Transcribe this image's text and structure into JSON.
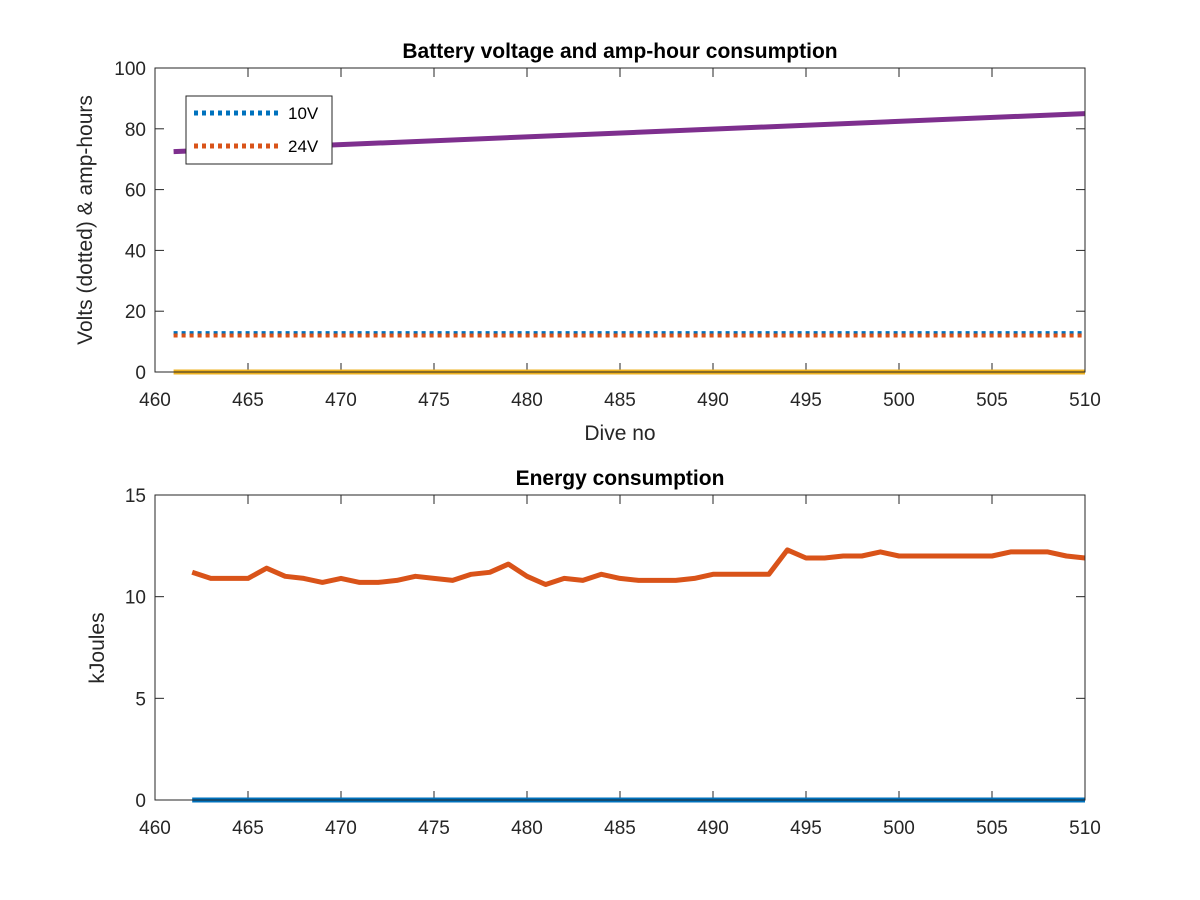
{
  "chart_data": [
    {
      "type": "line",
      "title": "Battery voltage and amp-hour consumption",
      "xlabel": "Dive no",
      "ylabel": "Volts (dotted) & amp-hours",
      "xlim": [
        460,
        510
      ],
      "ylim": [
        0,
        100
      ],
      "xticks": [
        460,
        465,
        470,
        475,
        480,
        485,
        490,
        495,
        500,
        505,
        510
      ],
      "yticks": [
        0,
        20,
        40,
        60,
        80,
        100
      ],
      "grid": false,
      "legend_position": "top-left",
      "series": [
        {
          "name": "10V",
          "color": "#0072BD",
          "style": "dotted",
          "x": [
            461,
            510
          ],
          "y": [
            12.8,
            12.8
          ]
        },
        {
          "name": "24V",
          "color": "#D95319",
          "style": "dotted",
          "x": [
            461,
            510
          ],
          "y": [
            12.0,
            12.0
          ]
        },
        {
          "color": "#EDB120",
          "style": "solid",
          "x": [
            461,
            510
          ],
          "y": [
            0,
            0
          ]
        },
        {
          "color": "#7E2F8E",
          "style": "solid",
          "x": [
            461,
            510
          ],
          "y": [
            72.5,
            85.0
          ]
        }
      ]
    },
    {
      "type": "line",
      "title": "Energy consumption",
      "xlabel": "",
      "ylabel": "kJoules",
      "xlim": [
        460,
        510
      ],
      "ylim": [
        0,
        15
      ],
      "xticks": [
        460,
        465,
        470,
        475,
        480,
        485,
        490,
        495,
        500,
        505,
        510
      ],
      "yticks": [
        0,
        5,
        10,
        15
      ],
      "grid": false,
      "series": [
        {
          "color": "#0072BD",
          "style": "solid",
          "x": [
            462,
            510
          ],
          "y": [
            0,
            0
          ]
        },
        {
          "color": "#D95319",
          "style": "solid",
          "x": [
            462,
            463,
            464,
            465,
            466,
            467,
            468,
            469,
            470,
            471,
            472,
            473,
            474,
            475,
            476,
            477,
            478,
            479,
            480,
            481,
            482,
            483,
            484,
            485,
            486,
            487,
            488,
            489,
            490,
            491,
            492,
            493,
            494,
            495,
            496,
            497,
            498,
            499,
            500,
            501,
            502,
            503,
            504,
            505,
            506,
            507,
            508,
            509,
            510
          ],
          "y": [
            11.2,
            10.9,
            10.9,
            10.9,
            11.4,
            11.0,
            10.9,
            10.7,
            10.9,
            10.7,
            10.7,
            10.8,
            11.0,
            10.9,
            10.8,
            11.1,
            11.2,
            11.6,
            11.0,
            10.6,
            10.9,
            10.8,
            11.1,
            10.9,
            10.8,
            10.8,
            10.8,
            10.9,
            11.1,
            11.1,
            11.1,
            11.1,
            12.3,
            11.9,
            11.9,
            12.0,
            12.0,
            12.2,
            12.0,
            12.0,
            12.0,
            12.0,
            12.0,
            12.0,
            12.2,
            12.2,
            12.2,
            12.0,
            11.9
          ]
        }
      ]
    }
  ]
}
